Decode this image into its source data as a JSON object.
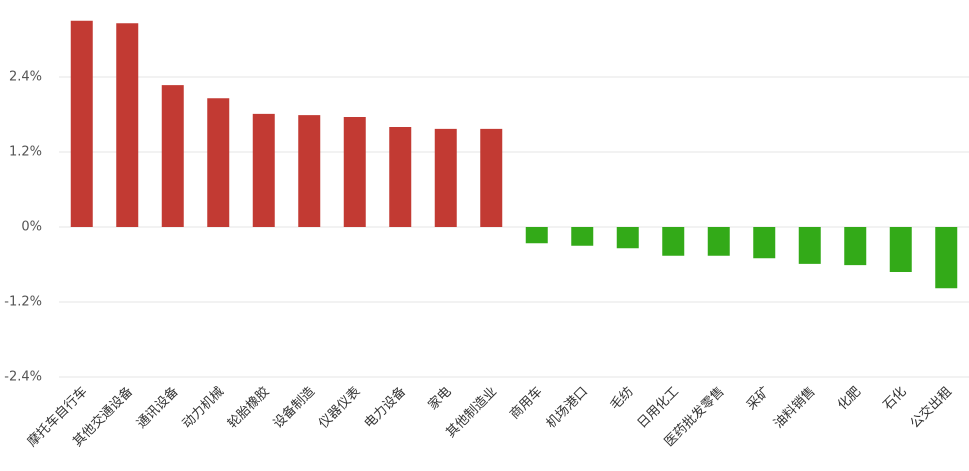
{
  "chart_data": {
    "type": "bar",
    "categories": [
      "摩托车自行车",
      "其他交通设备",
      "通讯设备",
      "动力机械",
      "轮胎橡胶",
      "设备制造",
      "仪器仪表",
      "电力设备",
      "家电",
      "其他制造业",
      "商用车",
      "机场港口",
      "毛纺",
      "日用化工",
      "医药批发零售",
      "采矿",
      "油料销售",
      "化肥",
      "石化",
      "公交出租"
    ],
    "values": [
      3.3,
      3.26,
      2.27,
      2.06,
      1.81,
      1.79,
      1.76,
      1.6,
      1.57,
      1.57,
      -0.26,
      -0.3,
      -0.34,
      -0.46,
      -0.46,
      -0.5,
      -0.59,
      -0.61,
      -0.72,
      -0.98
    ],
    "color_positive": "#c23a33",
    "color_negative": "#33aa18",
    "ylim": [
      -2.4,
      3.6
    ],
    "yticks": [
      {
        "value": -2.4,
        "label": "-2.4%"
      },
      {
        "value": -1.2,
        "label": "-1.2%"
      },
      {
        "value": 0,
        "label": "0%"
      },
      {
        "value": 1.2,
        "label": "1.2%"
      },
      {
        "value": 2.4,
        "label": "2.4%"
      }
    ],
    "grid": true
  }
}
